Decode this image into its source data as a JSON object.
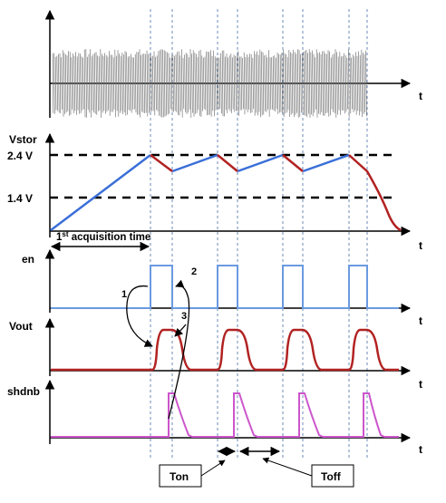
{
  "panels": {
    "input": {
      "axis_label": "t"
    },
    "vstor": {
      "title": "Vstor",
      "levels": [
        "2.4 V",
        "1.4 V"
      ],
      "axis_label": "t",
      "acquisition_label_main": "1",
      "acquisition_label_sup": "st",
      "acquisition_label_rest": " acquisition time"
    },
    "en": {
      "title": "en",
      "axis_label": "t"
    },
    "vout": {
      "title": "Vout",
      "axis_label": "t"
    },
    "shdnb": {
      "title": "shdnb",
      "axis_label": "t"
    }
  },
  "annotations": {
    "step_1": "1",
    "step_2": "2",
    "step_3": "3",
    "ton": "Ton",
    "toff": "Toff"
  },
  "colors": {
    "vstor_rise": "#3a6fd8",
    "vstor_fall": "#b22222",
    "en": "#6a9ae0",
    "vout": "#b22222",
    "shdnb": "#cc55cc",
    "noise": "#777777"
  }
}
